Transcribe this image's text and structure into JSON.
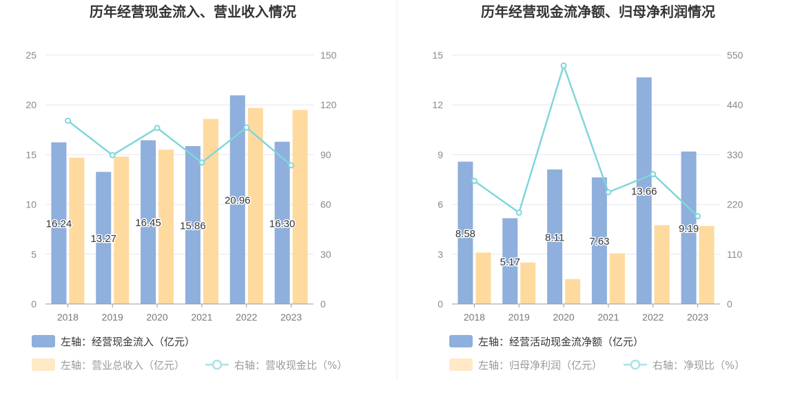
{
  "chart_data": [
    {
      "type": "bar",
      "title": "历年经营现金流入、营业收入情况",
      "categories": [
        "2018",
        "2019",
        "2020",
        "2021",
        "2022",
        "2023"
      ],
      "left_axis": {
        "ylim": [
          0,
          25
        ],
        "ticks": [
          "0",
          "5",
          "10",
          "15",
          "20",
          "25"
        ]
      },
      "right_axis": {
        "ylim": [
          0,
          150
        ],
        "ticks": [
          "0",
          "30",
          "60",
          "90",
          "120",
          "150"
        ]
      },
      "series": [
        {
          "name": "左轴：经营现金流入（亿元）",
          "type": "bar",
          "axis": "left",
          "color": "#8FAFDC",
          "values": [
            16.24,
            13.27,
            16.45,
            15.86,
            20.96,
            16.3
          ],
          "labels": [
            "16.24",
            "13.27",
            "16.45",
            "15.86",
            "20.96",
            "16.30"
          ]
        },
        {
          "name": "左轴：营业总收入（亿元）",
          "type": "bar",
          "axis": "left",
          "color": "#FFDA9E",
          "values": [
            14.7,
            14.8,
            15.5,
            18.6,
            19.7,
            19.5
          ]
        },
        {
          "name": "右轴：营收现金比（%）",
          "type": "line",
          "axis": "right",
          "color": "#7FD6DA",
          "values": [
            110.5,
            89.7,
            106.1,
            85.3,
            106.4,
            83.6
          ]
        }
      ],
      "grid": true,
      "legend_position": "bottom"
    },
    {
      "type": "bar",
      "title": "历年经营现金流净额、归母净利润情况",
      "categories": [
        "2018",
        "2019",
        "2020",
        "2021",
        "2022",
        "2023"
      ],
      "left_axis": {
        "ylim": [
          0,
          15
        ],
        "ticks": [
          "0",
          "3",
          "6",
          "9",
          "12",
          "15"
        ]
      },
      "right_axis": {
        "ylim": [
          0,
          550
        ],
        "ticks": [
          "0",
          "110",
          "220",
          "330",
          "440",
          "550"
        ]
      },
      "series": [
        {
          "name": "左轴：经营活动现金流净额（亿元）",
          "type": "bar",
          "axis": "left",
          "color": "#8FAFDC",
          "values": [
            8.58,
            5.17,
            8.11,
            7.63,
            13.66,
            9.19
          ],
          "labels": [
            "8.58",
            "5.17",
            "8.11",
            "7.63",
            "13.66",
            "9.19"
          ]
        },
        {
          "name": "左轴：归母净利润（亿元）",
          "type": "bar",
          "axis": "left",
          "color": "#FFDA9E",
          "values": [
            3.1,
            2.5,
            1.5,
            3.05,
            4.75,
            4.7
          ]
        },
        {
          "name": "右轴：净现比（%）",
          "type": "line",
          "axis": "right",
          "color": "#7FD6DA",
          "values": [
            272,
            202,
            527,
            247,
            287,
            194
          ]
        }
      ],
      "grid": true,
      "legend_position": "bottom"
    }
  ]
}
